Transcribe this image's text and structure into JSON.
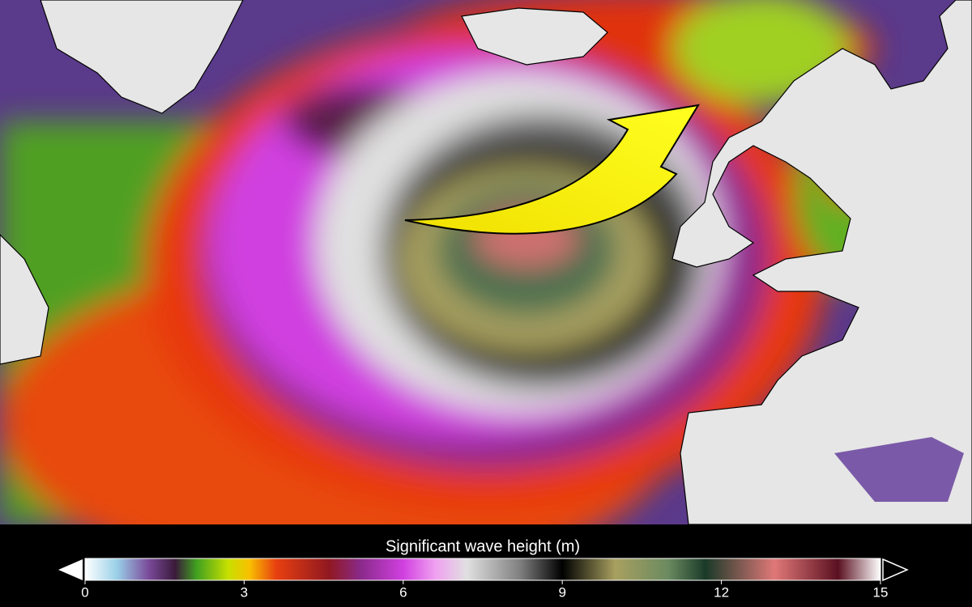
{
  "colorbar": {
    "title": "Significant wave height (m)",
    "range": [
      0,
      15
    ],
    "ticks": [
      0,
      3,
      6,
      9,
      12,
      15
    ],
    "stops": [
      [
        0,
        "#ffffff"
      ],
      [
        0.6,
        "#9ad0e8"
      ],
      [
        1.2,
        "#7a4a9a"
      ],
      [
        1.7,
        "#3a1a3a"
      ],
      [
        2.1,
        "#40a020"
      ],
      [
        2.7,
        "#c8e000"
      ],
      [
        3.1,
        "#f8c000"
      ],
      [
        3.6,
        "#e84010"
      ],
      [
        4.6,
        "#901820"
      ],
      [
        5.2,
        "#8a2a8a"
      ],
      [
        6.0,
        "#d040e0"
      ],
      [
        6.6,
        "#f0a0f0"
      ],
      [
        7.2,
        "#e0e0e0"
      ],
      [
        8.2,
        "#808080"
      ],
      [
        9.0,
        "#000000"
      ],
      [
        10.0,
        "#a8a060"
      ],
      [
        11.0,
        "#6a8a60"
      ],
      [
        11.7,
        "#1a3a28"
      ],
      [
        13.0,
        "#e07878"
      ],
      [
        14.2,
        "#5a1020"
      ],
      [
        15.0,
        "#ffffff"
      ]
    ]
  }
}
